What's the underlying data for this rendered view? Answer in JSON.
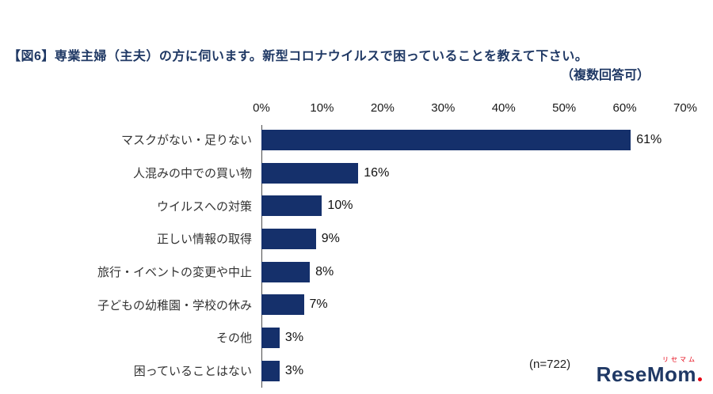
{
  "header": {
    "title": "【図6】専業主婦（主夫）の方に伺います。新型コロナウイルスで困っていることを教えて下さい。",
    "note": "（複数回答可）"
  },
  "chart_data": {
    "type": "bar",
    "orientation": "horizontal",
    "title": "【図6】専業主婦（主夫）の方に伺います。新型コロナウイルスで困っていることを教えて下さい。（複数回答可）",
    "categories": [
      "マスクがない・足りない",
      "人混みの中での買い物",
      "ウイルスへの対策",
      "正しい情報の取得",
      "旅行・イベントの変更や中止",
      "子どもの幼稚園・学校の休み",
      "その他",
      "困っていることはない"
    ],
    "values": [
      61,
      16,
      10,
      9,
      8,
      7,
      3,
      3
    ],
    "value_labels": [
      "61%",
      "16%",
      "10%",
      "9%",
      "8%",
      "7%",
      "3%",
      "3%"
    ],
    "x_ticks": [
      "0%",
      "10%",
      "20%",
      "30%",
      "40%",
      "50%",
      "60%",
      "70%"
    ],
    "xlim": [
      0,
      70
    ],
    "bar_color": "#15306b",
    "grid": false,
    "legend": false,
    "annotation": "(n=722)"
  },
  "logo": {
    "text": "ReseMom",
    "kana": "リセマム",
    "color": "#1f3864",
    "accent_color": "#e60012"
  }
}
